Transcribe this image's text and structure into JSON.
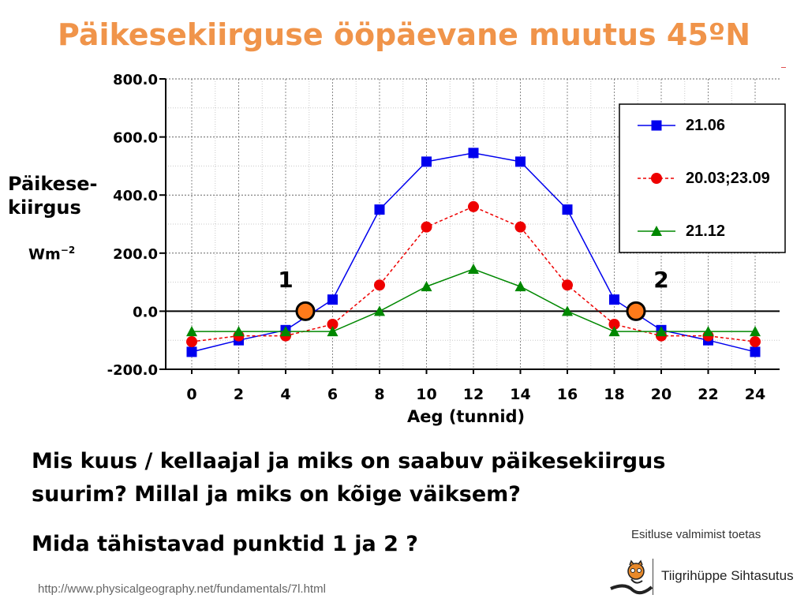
{
  "title": "Päikesekiirguse ööpäevane muutus 45ºN",
  "y_label_line1": "Päikese-",
  "y_label_line2": "kiirgus",
  "unit_base": "Wm",
  "unit_exp": "−2",
  "x_label": "Aeg (tunnid)",
  "points": [
    {
      "label": "1",
      "x": 5,
      "y": 0
    },
    {
      "label": "2",
      "x": 19,
      "y": 0
    }
  ],
  "question1": "Mis kuus / kellaajal ja miks on saabuv päikesekiirgus suurim? Millal ja miks on kõige väiksem?",
  "question2": "Mida tähistavad punktid 1 ja 2 ?",
  "credit": "Esitluse valmimist toetas",
  "sponsor": "Tiigrihüppe Sihtasutus",
  "url": "http://www.physicalgeography.net/fundamentals/7l.html",
  "colors": {
    "title": "#F0944A",
    "series1": "#0000EE",
    "series2": "#EE0000",
    "series3": "#008800",
    "points": "#FF7A1A"
  },
  "chart_data": {
    "type": "line",
    "x": [
      0,
      2,
      4,
      6,
      8,
      10,
      12,
      14,
      16,
      18,
      20,
      22,
      24
    ],
    "xticks": [
      "0",
      "2",
      "4",
      "6",
      "8",
      "10",
      "12",
      "14",
      "16",
      "18",
      "20",
      "22",
      "24"
    ],
    "yticks": [
      "800.0",
      "600.0",
      "400.0",
      "200.0",
      "0.0",
      "-200.0"
    ],
    "ylim": [
      -200,
      800
    ],
    "xlim": [
      0,
      24
    ],
    "grid": true,
    "legend_position": "top-right",
    "series": [
      {
        "name": "21.06",
        "marker": "square",
        "style": "solid",
        "values": [
          -140,
          -100,
          -65,
          40,
          350,
          515,
          545,
          515,
          350,
          40,
          -65,
          -100,
          -140
        ]
      },
      {
        "name": "20.03;23.09",
        "marker": "circle",
        "style": "dashed",
        "values": [
          -105,
          -85,
          -85,
          -45,
          90,
          290,
          360,
          290,
          90,
          -45,
          -85,
          -85,
          -105
        ]
      },
      {
        "name": "21.12",
        "marker": "triangle",
        "style": "solid",
        "values": [
          -70,
          -70,
          -70,
          -70,
          0,
          85,
          145,
          85,
          0,
          -70,
          -70,
          -70,
          -70
        ]
      }
    ]
  }
}
